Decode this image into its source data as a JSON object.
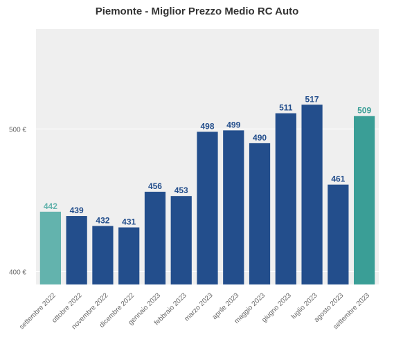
{
  "chart_data": {
    "type": "bar",
    "title": "Piemonte - Miglior Prezzo Medio RC Auto",
    "xlabel": "",
    "ylabel": "",
    "ylim": [
      391,
      570
    ],
    "yticks": [
      400,
      500
    ],
    "ytick_labels": [
      "400 €",
      "500 €"
    ],
    "grid": true,
    "categories": [
      "settembre 2022",
      "ottobre 2022",
      "novembre 2022",
      "dicembre 2022",
      "gennaio 2023",
      "febbraio 2023",
      "marzo 2023",
      "aprile 2023",
      "maggio 2023",
      "giugno 2023",
      "luglio 2023",
      "agosto 2023",
      "settembre 2023"
    ],
    "values": [
      442,
      439,
      432,
      431,
      456,
      453,
      498,
      499,
      490,
      511,
      517,
      461,
      509
    ],
    "bar_colors": [
      "#63b3ad",
      "#234e8c",
      "#234e8c",
      "#234e8c",
      "#234e8c",
      "#234e8c",
      "#234e8c",
      "#234e8c",
      "#234e8c",
      "#234e8c",
      "#234e8c",
      "#234e8c",
      "#3a9e96"
    ],
    "label_colors": [
      "#63b3ad",
      "#234e8c",
      "#234e8c",
      "#234e8c",
      "#234e8c",
      "#234e8c",
      "#234e8c",
      "#234e8c",
      "#234e8c",
      "#234e8c",
      "#234e8c",
      "#234e8c",
      "#3a9e96"
    ],
    "background_color": "#efefef",
    "grid_color": "#ffffff"
  }
}
